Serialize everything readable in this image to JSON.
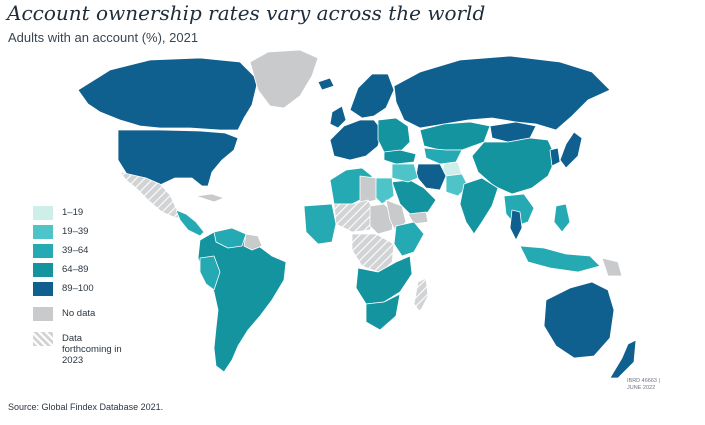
{
  "header": {
    "title": "Account ownership rates vary across the world",
    "subtitle": "Adults with an account (%), 2021"
  },
  "legend": [
    {
      "label": "1–19",
      "color": "#cdeee9",
      "hatched": false
    },
    {
      "label": "19–39",
      "color": "#4ec4c9",
      "hatched": false
    },
    {
      "label": "39–64",
      "color": "#25aab4",
      "hatched": false
    },
    {
      "label": "64–89",
      "color": "#13949f",
      "hatched": false
    },
    {
      "label": "89–100",
      "color": "#0f5f8f",
      "hatched": false
    },
    {
      "label": "No data",
      "color": "#c9cacc",
      "hatched": false
    },
    {
      "label": "Data forthcoming in 2023",
      "color": "#d2d3d5",
      "hatched": true
    }
  ],
  "footer": {
    "source": "Source: Global Findex Database 2021.",
    "stamp_line1": "IBRD 46663 |",
    "stamp_line2": "JUNE 2022"
  },
  "regions": [
    {
      "name": "alaska-canada",
      "category": "89–100"
    },
    {
      "name": "united-states",
      "category": "89–100"
    },
    {
      "name": "greenland",
      "category": "No data"
    },
    {
      "name": "mexico",
      "category": "Data forthcoming in 2023"
    },
    {
      "name": "central-america",
      "category": "39–64"
    },
    {
      "name": "cuba",
      "category": "No data"
    },
    {
      "name": "south-america",
      "category": "64–89"
    },
    {
      "name": "venezuela",
      "category": "39–64"
    },
    {
      "name": "guyanas",
      "category": "No data"
    },
    {
      "name": "peru",
      "category": "39–64"
    },
    {
      "name": "iceland",
      "category": "89–100"
    },
    {
      "name": "scandinavia",
      "category": "89–100"
    },
    {
      "name": "western-europe",
      "category": "89–100"
    },
    {
      "name": "uk-ireland",
      "category": "89–100"
    },
    {
      "name": "eastern-europe",
      "category": "64–89"
    },
    {
      "name": "russia",
      "category": "89–100"
    },
    {
      "name": "kazakhstan",
      "category": "64–89"
    },
    {
      "name": "mongolia",
      "category": "89–100"
    },
    {
      "name": "china",
      "category": "64–89"
    },
    {
      "name": "japan",
      "category": "89–100"
    },
    {
      "name": "korea",
      "category": "89–100"
    },
    {
      "name": "turkey",
      "category": "64–89"
    },
    {
      "name": "central-asia",
      "category": "39–64"
    },
    {
      "name": "afghanistan",
      "category": "1–19"
    },
    {
      "name": "iran",
      "category": "89–100"
    },
    {
      "name": "arabia",
      "category": "64–89"
    },
    {
      "name": "iraq-syria",
      "category": "19–39"
    },
    {
      "name": "yemen",
      "category": "No data"
    },
    {
      "name": "pakistan",
      "category": "19–39"
    },
    {
      "name": "india",
      "category": "64–89"
    },
    {
      "name": "southeast-asia",
      "category": "39–64"
    },
    {
      "name": "thailand",
      "category": "89–100"
    },
    {
      "name": "philippines",
      "category": "39–64"
    },
    {
      "name": "indonesia",
      "category": "39–64"
    },
    {
      "name": "png",
      "category": "No data"
    },
    {
      "name": "australia",
      "category": "89–100"
    },
    {
      "name": "new-zealand",
      "category": "89–100"
    },
    {
      "name": "north-africa",
      "category": "39–64"
    },
    {
      "name": "egypt",
      "category": "19–39"
    },
    {
      "name": "libya",
      "category": "No data"
    },
    {
      "name": "sahara",
      "category": "Data forthcoming in 2023"
    },
    {
      "name": "west-africa",
      "category": "39–64"
    },
    {
      "name": "central-africa",
      "category": "No data"
    },
    {
      "name": "sudan",
      "category": "No data"
    },
    {
      "name": "east-africa",
      "category": "39–64"
    },
    {
      "name": "congo",
      "category": "Data forthcoming in 2023"
    },
    {
      "name": "southern-africa",
      "category": "64–89"
    },
    {
      "name": "south-africa",
      "category": "64–89"
    },
    {
      "name": "madagascar",
      "category": "Data forthcoming in 2023"
    }
  ]
}
